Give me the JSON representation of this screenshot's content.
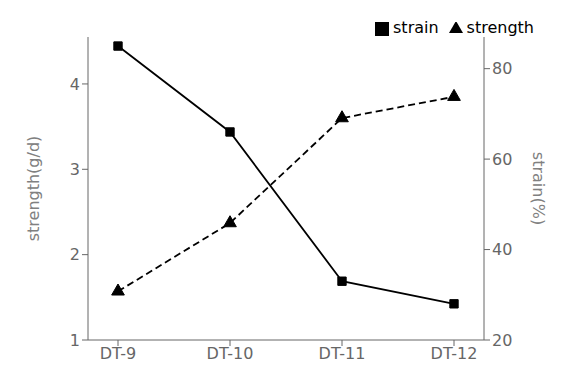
{
  "chart_data": {
    "type": "line",
    "categories": [
      "DT-9",
      "DT-10",
      "DT-11",
      "DT-12"
    ],
    "series": [
      {
        "name": "strength",
        "color": "#000000",
        "values": [
          1.57,
          2.37,
          3.6,
          3.85
        ],
        "marker": "triangle",
        "line_style": "dashed"
      },
      {
        "name": "strain",
        "color": "#000000",
        "values": [
          85,
          66,
          33,
          28
        ],
        "axis": "y2",
        "marker": "square",
        "line_style": "solid"
      }
    ],
    "ylabel": "strength(g/d)",
    "y2label": "strain(%)",
    "ylim": [
      1.0,
      4.55
    ],
    "yticks": [
      1,
      2,
      3,
      4
    ],
    "y2lim": [
      20,
      87
    ],
    "y2ticks": [
      20,
      40,
      60,
      80
    ],
    "legend": "upper right",
    "grid": false
  }
}
